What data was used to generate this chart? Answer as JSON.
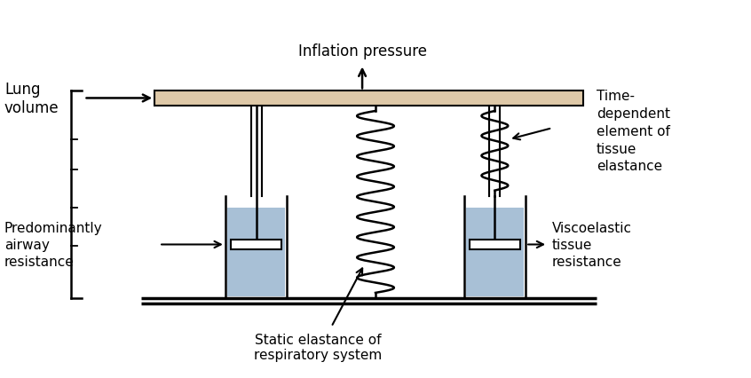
{
  "bg_color": "#ffffff",
  "bar_color": "#dfc9a8",
  "dashpot_fill_color": "#a8c0d6",
  "line_color": "#000000",
  "figsize": [
    8.46,
    4.27
  ],
  "dpi": 100,
  "title": "Inflation pressure",
  "label_lung_volume": "Lung\nvolume",
  "label_time_dependent": "Time-\ndependent\nelement of\ntissue\nelastance",
  "label_predominantly": "Predominantly\nairway\nresistance",
  "label_viscoelastic": "Viscoelastic\ntissue\nresistance",
  "label_static_elastance": "Static elastance of\nrespiratory system"
}
